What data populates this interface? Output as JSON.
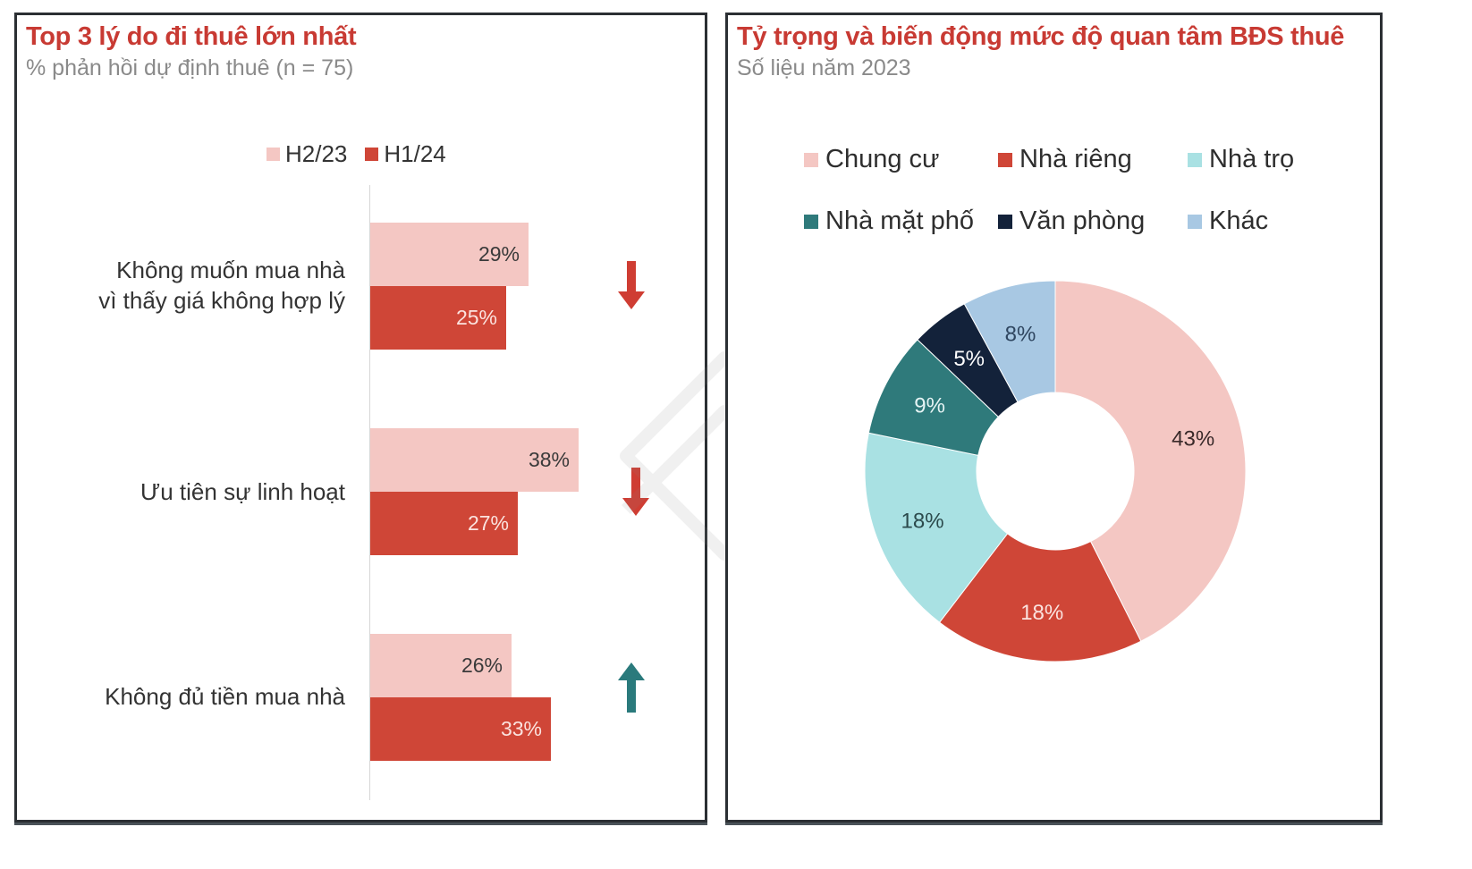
{
  "left_panel": {
    "title": "Top 3 lý do đi thuê lớn nhất",
    "subtitle": "% phản hồi dự định thuê (n = 75)",
    "legend": [
      {
        "label": "H2/23",
        "color": "#f4c7c3"
      },
      {
        "label": "H1/24",
        "color": "#cf4637"
      }
    ],
    "categories": [
      {
        "label_line1": "Không muốn mua nhà",
        "label_line2": "vì thấy giá không hợp lý",
        "h2_23": "29%",
        "h1_24": "25%",
        "trend": "down",
        "trend_icon": "arrow-down-icon",
        "trend_color": "#cf3d33"
      },
      {
        "label_line1": "Ưu tiên sự linh hoạt",
        "label_line2": "",
        "h2_23": "38%",
        "h1_24": "27%",
        "trend": "down",
        "trend_icon": "arrow-down-icon",
        "trend_color": "#cf3d33"
      },
      {
        "label_line1": "Không đủ tiền mua nhà",
        "label_line2": "",
        "h2_23": "26%",
        "h1_24": "33%",
        "trend": "up",
        "trend_icon": "arrow-up-icon",
        "trend_color": "#2a7a7c"
      }
    ]
  },
  "right_panel": {
    "title": "Tỷ trọng và biến động mức độ quan tâm BĐS thuê",
    "subtitle": "Số liệu năm 2023",
    "legend": [
      {
        "label": "Chung cư",
        "color": "#f4c7c3"
      },
      {
        "label": "Nhà riêng",
        "color": "#cf4637"
      },
      {
        "label": "Nhà trọ",
        "color": "#a9e1e3"
      },
      {
        "label": "Nhà mặt phố",
        "color": "#2f7a7b"
      },
      {
        "label": "Văn phòng",
        "color": "#13223a"
      },
      {
        "label": "Khác",
        "color": "#a8c8e3"
      }
    ],
    "slice_labels": [
      "43%",
      "18%",
      "18%",
      "9%",
      "5%",
      "8%"
    ]
  },
  "chart_data": [
    {
      "type": "bar",
      "orientation": "horizontal",
      "title": "Top 3 lý do đi thuê lớn nhất",
      "subtitle": "% phản hồi dự định thuê (n = 75)",
      "categories": [
        "Không muốn mua nhà vì thấy giá không hợp lý",
        "Ưu tiên sự linh hoạt",
        "Không đủ tiền mua nhà"
      ],
      "series": [
        {
          "name": "H2/23",
          "values": [
            29,
            38,
            26
          ],
          "color": "#f4c7c3"
        },
        {
          "name": "H1/24",
          "values": [
            25,
            27,
            33
          ],
          "color": "#cf4637"
        }
      ],
      "annotations": [
        "down",
        "down",
        "up"
      ],
      "xlabel": "",
      "ylabel": "",
      "unit": "%",
      "legend_position": "top",
      "grid": false
    },
    {
      "type": "pie",
      "variant": "donut",
      "title": "Tỷ trọng và biến động mức độ quan tâm BĐS thuê",
      "subtitle": "Số liệu năm 2023",
      "categories": [
        "Chung cư",
        "Nhà riêng",
        "Nhà trọ",
        "Nhà mặt phố",
        "Văn phòng",
        "Khác"
      ],
      "values": [
        43,
        18,
        18,
        9,
        5,
        8
      ],
      "colors": [
        "#f4c7c3",
        "#cf4637",
        "#a9e1e3",
        "#2f7a7b",
        "#13223a",
        "#a8c8e3"
      ],
      "unit": "%",
      "legend_position": "top"
    }
  ]
}
